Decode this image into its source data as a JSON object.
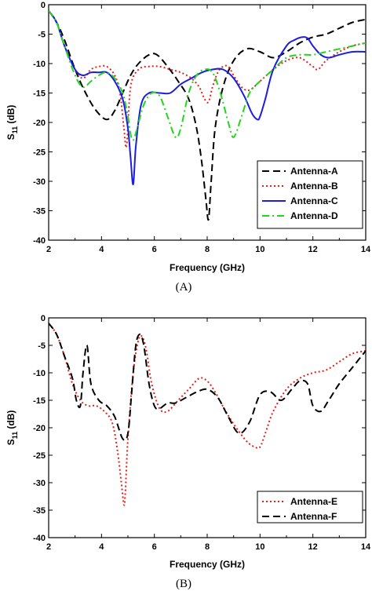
{
  "chart_data": [
    {
      "type": "line",
      "caption": "(A)",
      "xlabel": "Frequency (GHz)",
      "ylabel_main": "S",
      "ylabel_sub": "11",
      "ylabel_unit": " (dB)",
      "xlim": [
        2,
        14
      ],
      "ylim": [
        -40,
        0
      ],
      "xticks": [
        2,
        4,
        6,
        8,
        10,
        12,
        14
      ],
      "yticks": [
        0,
        -5,
        -10,
        -15,
        -20,
        -25,
        -30,
        -35,
        -40
      ],
      "grid": false,
      "legend_position": "bottom-right",
      "series": [
        {
          "name": "Antenna-A",
          "color": "#000000",
          "dash": "dash",
          "x": [
            2,
            2.3,
            2.6,
            3.0,
            3.4,
            3.8,
            4.2,
            4.5,
            4.8,
            5.1,
            5.4,
            5.8,
            6.1,
            6.5,
            6.9,
            7.3,
            7.6,
            7.8,
            7.95,
            8.05,
            8.15,
            8.3,
            8.6,
            9.0,
            9.5,
            10.0,
            10.5,
            11.0,
            11.5,
            12.0,
            12.5,
            13.0,
            13.5,
            14.0
          ],
          "y": [
            -1,
            -3,
            -6,
            -11,
            -15,
            -18,
            -19.5,
            -18,
            -15,
            -12,
            -10,
            -8.5,
            -8.5,
            -10.5,
            -13,
            -16,
            -21,
            -27,
            -33,
            -36.5,
            -30,
            -21,
            -14,
            -9.5,
            -7.5,
            -8,
            -9,
            -8,
            -6.5,
            -5.5,
            -5,
            -4,
            -3,
            -2.5
          ]
        },
        {
          "name": "Antenna-B",
          "color": "#e3201c",
          "dash": "dot",
          "x": [
            2,
            2.3,
            2.6,
            3.0,
            3.3,
            3.6,
            3.9,
            4.2,
            4.5,
            4.7,
            4.85,
            4.95,
            5.1,
            5.4,
            5.8,
            6.2,
            6.6,
            7.0,
            7.4,
            7.7,
            7.9,
            8.05,
            8.2,
            8.4,
            8.6,
            8.8,
            9.0,
            9.3,
            9.6,
            10.0,
            10.5,
            11.0,
            11.5,
            12.0,
            12.2,
            12.5,
            13.0,
            13.5,
            14.0
          ],
          "y": [
            -1,
            -3,
            -7,
            -11,
            -12.5,
            -11,
            -10.5,
            -10.5,
            -12,
            -15,
            -21,
            -24,
            -14,
            -11,
            -10.5,
            -10.5,
            -11,
            -11.5,
            -12.5,
            -14,
            -16,
            -16.5,
            -14,
            -11.5,
            -10.5,
            -10.5,
            -12,
            -14,
            -14.5,
            -13,
            -11,
            -9.5,
            -9,
            -10.5,
            -11,
            -9.5,
            -8,
            -7,
            -6.5
          ]
        },
        {
          "name": "Antenna-C",
          "color": "#1c1ce3",
          "dash": "solid",
          "x": [
            2,
            2.3,
            2.6,
            3.0,
            3.3,
            3.6,
            3.9,
            4.2,
            4.5,
            4.8,
            5.0,
            5.1,
            5.2,
            5.3,
            5.5,
            5.8,
            6.2,
            6.6,
            7.0,
            7.4,
            7.8,
            8.2,
            8.6,
            9.0,
            9.4,
            9.7,
            9.9,
            10.0,
            10.2,
            10.5,
            11.0,
            11.3,
            11.6,
            11.8,
            12.0,
            12.3,
            12.6,
            13.0,
            13.5,
            14.0
          ],
          "y": [
            -1,
            -3,
            -7,
            -11,
            -12,
            -11.5,
            -11.5,
            -11.5,
            -13,
            -16,
            -21,
            -26,
            -30.5,
            -24,
            -17,
            -15,
            -15,
            -15,
            -13.5,
            -12.5,
            -11.5,
            -11,
            -11,
            -12.5,
            -15.5,
            -18.5,
            -19.5,
            -19,
            -16,
            -11,
            -7,
            -6,
            -5.5,
            -5.7,
            -7,
            -8.5,
            -9,
            -8.5,
            -8,
            -8
          ]
        },
        {
          "name": "Antenna-D",
          "color": "#22d41c",
          "dash": "dashdot",
          "x": [
            2,
            2.3,
            2.6,
            3.0,
            3.3,
            3.6,
            3.9,
            4.2,
            4.5,
            4.8,
            5.0,
            5.1,
            5.2,
            5.35,
            5.6,
            5.9,
            6.2,
            6.5,
            6.8,
            7.0,
            7.3,
            7.6,
            7.9,
            8.2,
            8.5,
            8.8,
            9.0,
            9.3,
            9.6,
            10.0,
            10.5,
            11.0,
            11.5,
            12.0,
            12.5,
            13.0,
            13.5,
            14.0
          ],
          "y": [
            -1,
            -3,
            -7,
            -12,
            -14,
            -13,
            -12,
            -11.5,
            -12.5,
            -15,
            -19,
            -22,
            -23,
            -21,
            -17,
            -15,
            -15.5,
            -19,
            -22.5,
            -21,
            -15,
            -12,
            -11,
            -11.5,
            -15,
            -20,
            -22.5,
            -19,
            -15,
            -13,
            -11,
            -9,
            -8.5,
            -8.5,
            -8,
            -7.5,
            -7,
            -6.5
          ]
        }
      ]
    },
    {
      "type": "line",
      "caption": "(B)",
      "xlabel": "Frequency (GHz)",
      "ylabel_main": "S",
      "ylabel_sub": "11",
      "ylabel_unit": " (dB)",
      "xlim": [
        2,
        14
      ],
      "ylim": [
        -40,
        0
      ],
      "xticks": [
        2,
        4,
        6,
        8,
        10,
        12,
        14
      ],
      "yticks": [
        0,
        -5,
        -10,
        -15,
        -20,
        -25,
        -30,
        -35,
        -40
      ],
      "grid": false,
      "legend_position": "bottom-right",
      "series": [
        {
          "name": "Antenna-E",
          "color": "#e3201c",
          "dash": "dot",
          "x": [
            2,
            2.3,
            2.6,
            2.9,
            3.2,
            3.5,
            3.8,
            4.1,
            4.4,
            4.6,
            4.75,
            4.85,
            4.9,
            5.0,
            5.2,
            5.4,
            5.55,
            5.7,
            5.9,
            6.2,
            6.5,
            6.9,
            7.3,
            7.7,
            8.0,
            8.3,
            8.7,
            9.1,
            9.5,
            9.8,
            10.0,
            10.2,
            10.5,
            11.0,
            11.5,
            12.0,
            12.5,
            13.0,
            13.5,
            14.0
          ],
          "y": [
            -1,
            -3,
            -7,
            -12,
            -15,
            -16,
            -16,
            -17,
            -19,
            -24,
            -30,
            -34,
            -32,
            -22,
            -10,
            -4,
            -3.5,
            -6,
            -12,
            -16.5,
            -17,
            -15,
            -13,
            -11,
            -11.5,
            -13.5,
            -17,
            -20,
            -22.5,
            -23.5,
            -23.5,
            -21,
            -17,
            -13,
            -11,
            -10,
            -9.5,
            -8,
            -6.5,
            -6
          ]
        },
        {
          "name": "Antenna-F",
          "color": "#000000",
          "dash": "dash",
          "x": [
            2,
            2.3,
            2.6,
            2.9,
            3.05,
            3.2,
            3.3,
            3.45,
            3.6,
            3.9,
            4.2,
            4.5,
            4.8,
            5.0,
            5.15,
            5.3,
            5.45,
            5.6,
            5.8,
            6.0,
            6.2,
            6.5,
            6.8,
            7.2,
            7.6,
            8.0,
            8.4,
            8.8,
            9.2,
            9.6,
            10.0,
            10.4,
            10.8,
            11.2,
            11.5,
            11.8,
            12.0,
            12.3,
            12.6,
            13.0,
            13.5,
            14.0
          ],
          "y": [
            -1,
            -3,
            -7,
            -11,
            -15,
            -16,
            -10,
            -5,
            -12,
            -15,
            -16,
            -18,
            -22,
            -21,
            -13,
            -5,
            -3,
            -5,
            -12,
            -16,
            -16.5,
            -15.5,
            -15.5,
            -14.5,
            -13.5,
            -13,
            -14.5,
            -18,
            -21,
            -19,
            -14,
            -13.5,
            -15,
            -13,
            -11.5,
            -12,
            -16,
            -17,
            -15,
            -12,
            -9,
            -6
          ]
        }
      ]
    }
  ]
}
